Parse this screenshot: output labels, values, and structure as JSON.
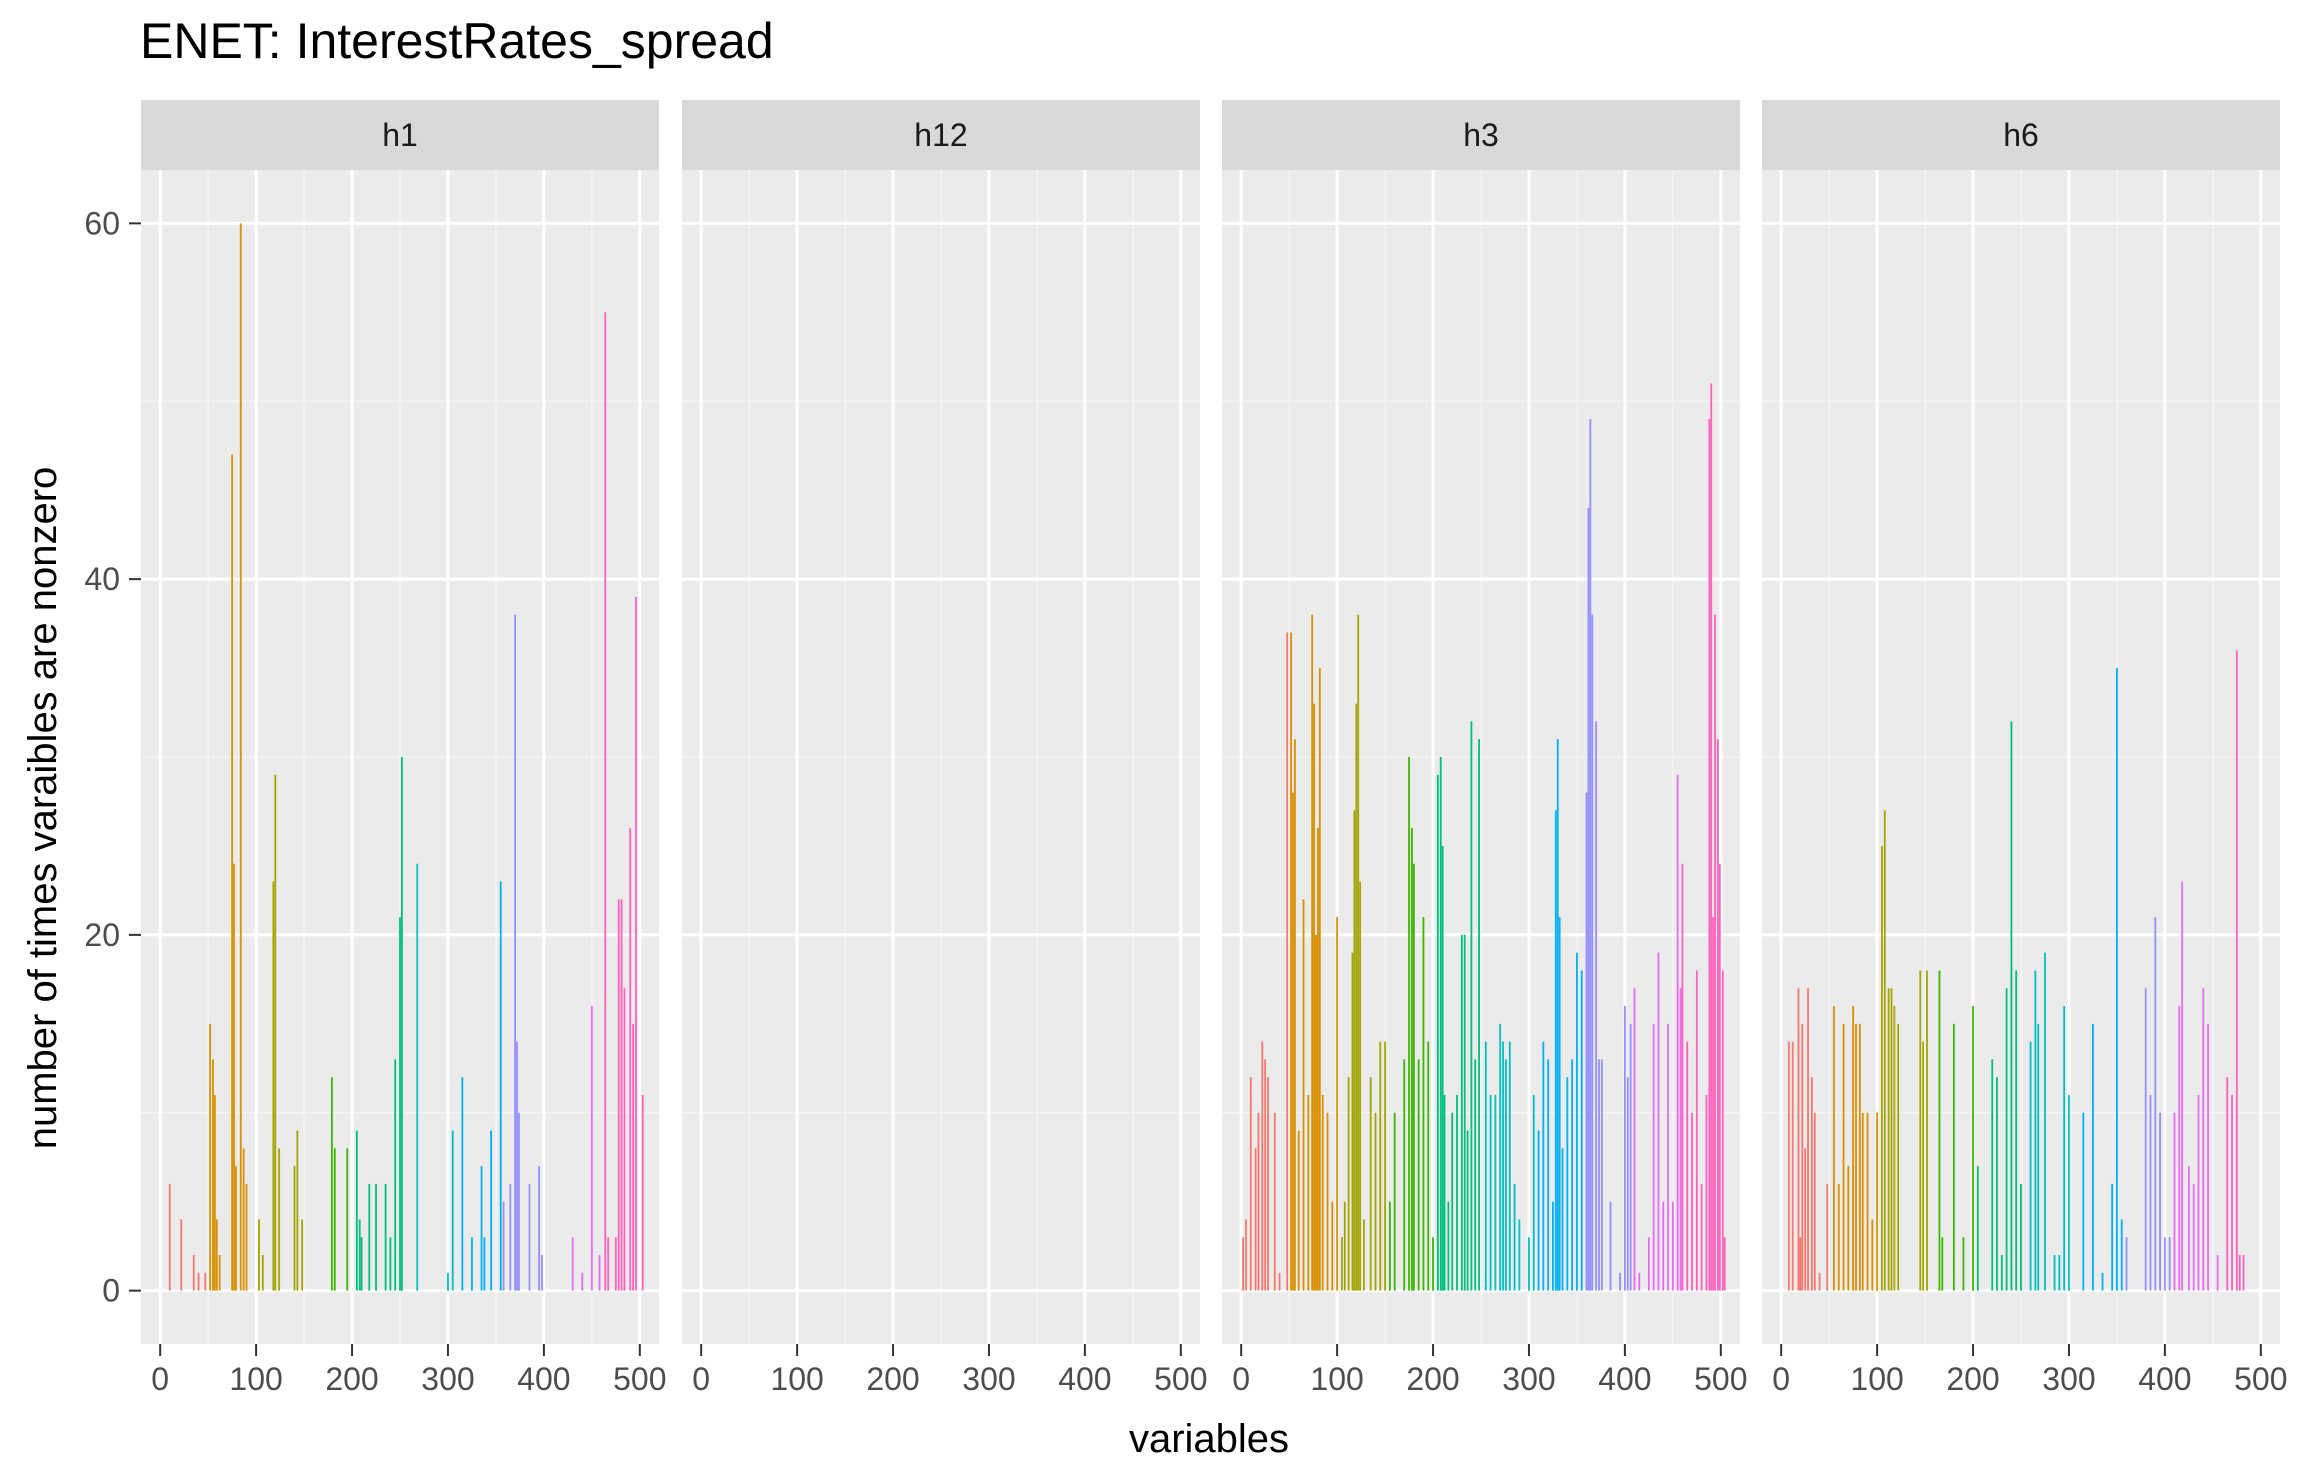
{
  "chart_data": {
    "type": "bar",
    "title": "ENET: InterestRates_spread",
    "xlabel": "variables",
    "ylabel": "number of times varaibles are nonzero",
    "xlim": [
      -20,
      520
    ],
    "ylim": [
      -3,
      63
    ],
    "x_ticks": [
      0,
      100,
      200,
      300,
      400,
      500
    ],
    "y_ticks": [
      0,
      20,
      40,
      60
    ],
    "facets": [
      {
        "name": "h1",
        "bars": [
          [
            10,
            6
          ],
          [
            22,
            4
          ],
          [
            35,
            2
          ],
          [
            40,
            1
          ],
          [
            47,
            1
          ],
          [
            52,
            15
          ],
          [
            55,
            13
          ],
          [
            57,
            11
          ],
          [
            59,
            4
          ],
          [
            62,
            2
          ],
          [
            75,
            47
          ],
          [
            77,
            24
          ],
          [
            79,
            7
          ],
          [
            84,
            60
          ],
          [
            87,
            8
          ],
          [
            90,
            6
          ],
          [
            103,
            4
          ],
          [
            107,
            2
          ],
          [
            118,
            23
          ],
          [
            120,
            29
          ],
          [
            124,
            8
          ],
          [
            140,
            7
          ],
          [
            143,
            9
          ],
          [
            148,
            4
          ],
          [
            179,
            12
          ],
          [
            182,
            8
          ],
          [
            195,
            8
          ],
          [
            205,
            9
          ],
          [
            208,
            4
          ],
          [
            210,
            3
          ],
          [
            218,
            6
          ],
          [
            225,
            6
          ],
          [
            235,
            6
          ],
          [
            240,
            3
          ],
          [
            245,
            13
          ],
          [
            250,
            21
          ],
          [
            252,
            30
          ],
          [
            268,
            24
          ],
          [
            300,
            1
          ],
          [
            305,
            9
          ],
          [
            315,
            12
          ],
          [
            325,
            3
          ],
          [
            335,
            7
          ],
          [
            338,
            3
          ],
          [
            345,
            9
          ],
          [
            355,
            23
          ],
          [
            358,
            5
          ],
          [
            365,
            6
          ],
          [
            370,
            38
          ],
          [
            372,
            14
          ],
          [
            374,
            10
          ],
          [
            385,
            6
          ],
          [
            395,
            7
          ],
          [
            398,
            2
          ],
          [
            430,
            3
          ],
          [
            440,
            1
          ],
          [
            450,
            16
          ],
          [
            458,
            2
          ],
          [
            464,
            55
          ],
          [
            467,
            3
          ],
          [
            475,
            3
          ],
          [
            478,
            22
          ],
          [
            481,
            22
          ],
          [
            484,
            17
          ],
          [
            490,
            26
          ],
          [
            493,
            15
          ],
          [
            496,
            39
          ],
          [
            503,
            11
          ]
        ]
      },
      {
        "name": "h12",
        "bars": []
      },
      {
        "name": "h3",
        "bars": [
          [
            2,
            3
          ],
          [
            5,
            4
          ],
          [
            10,
            12
          ],
          [
            15,
            8
          ],
          [
            18,
            10
          ],
          [
            22,
            14
          ],
          [
            25,
            13
          ],
          [
            28,
            12
          ],
          [
            35,
            10
          ],
          [
            40,
            1
          ],
          [
            48,
            37
          ],
          [
            52,
            37
          ],
          [
            54,
            28
          ],
          [
            56,
            31
          ],
          [
            60,
            9
          ],
          [
            65,
            22
          ],
          [
            70,
            11
          ],
          [
            74,
            38
          ],
          [
            76,
            33
          ],
          [
            78,
            20
          ],
          [
            80,
            26
          ],
          [
            82,
            35
          ],
          [
            85,
            11
          ],
          [
            90,
            10
          ],
          [
            95,
            5
          ],
          [
            100,
            21
          ],
          [
            105,
            3
          ],
          [
            108,
            5
          ],
          [
            112,
            12
          ],
          [
            116,
            19
          ],
          [
            118,
            27
          ],
          [
            120,
            33
          ],
          [
            122,
            38
          ],
          [
            124,
            23
          ],
          [
            128,
            4
          ],
          [
            135,
            12
          ],
          [
            140,
            10
          ],
          [
            145,
            14
          ],
          [
            150,
            14
          ],
          [
            155,
            5
          ],
          [
            160,
            10
          ],
          [
            170,
            13
          ],
          [
            175,
            30
          ],
          [
            178,
            26
          ],
          [
            180,
            24
          ],
          [
            185,
            13
          ],
          [
            190,
            21
          ],
          [
            195,
            14
          ],
          [
            200,
            3
          ],
          [
            205,
            29
          ],
          [
            208,
            30
          ],
          [
            210,
            25
          ],
          [
            212,
            11
          ],
          [
            216,
            5
          ],
          [
            220,
            10
          ],
          [
            225,
            11
          ],
          [
            230,
            20
          ],
          [
            233,
            20
          ],
          [
            236,
            9
          ],
          [
            240,
            32
          ],
          [
            244,
            13
          ],
          [
            248,
            31
          ],
          [
            255,
            14
          ],
          [
            260,
            11
          ],
          [
            265,
            11
          ],
          [
            270,
            15
          ],
          [
            273,
            14
          ],
          [
            276,
            13
          ],
          [
            280,
            14
          ],
          [
            285,
            6
          ],
          [
            290,
            4
          ],
          [
            300,
            3
          ],
          [
            305,
            11
          ],
          [
            310,
            9
          ],
          [
            315,
            14
          ],
          [
            320,
            13
          ],
          [
            325,
            5
          ],
          [
            328,
            27
          ],
          [
            330,
            31
          ],
          [
            332,
            21
          ],
          [
            335,
            8
          ],
          [
            340,
            12
          ],
          [
            345,
            13
          ],
          [
            350,
            19
          ],
          [
            355,
            18
          ],
          [
            360,
            28
          ],
          [
            362,
            44
          ],
          [
            364,
            49
          ],
          [
            366,
            38
          ],
          [
            370,
            32
          ],
          [
            373,
            13
          ],
          [
            376,
            13
          ],
          [
            385,
            5
          ],
          [
            395,
            1
          ],
          [
            400,
            16
          ],
          [
            403,
            12
          ],
          [
            406,
            15
          ],
          [
            410,
            17
          ],
          [
            415,
            1
          ],
          [
            425,
            3
          ],
          [
            430,
            15
          ],
          [
            435,
            19
          ],
          [
            440,
            5
          ],
          [
            445,
            15
          ],
          [
            450,
            5
          ],
          [
            455,
            29
          ],
          [
            458,
            17
          ],
          [
            460,
            24
          ],
          [
            465,
            14
          ],
          [
            470,
            10
          ],
          [
            475,
            18
          ],
          [
            480,
            6
          ],
          [
            485,
            11
          ],
          [
            488,
            49
          ],
          [
            490,
            51
          ],
          [
            492,
            21
          ],
          [
            494,
            38
          ],
          [
            497,
            31
          ],
          [
            499,
            24
          ],
          [
            502,
            18
          ],
          [
            504,
            3
          ]
        ]
      },
      {
        "name": "h6",
        "bars": [
          [
            8,
            14
          ],
          [
            12,
            14
          ],
          [
            18,
            17
          ],
          [
            20,
            3
          ],
          [
            22,
            15
          ],
          [
            25,
            8
          ],
          [
            28,
            17
          ],
          [
            32,
            12
          ],
          [
            35,
            10
          ],
          [
            40,
            1
          ],
          [
            48,
            6
          ],
          [
            55,
            16
          ],
          [
            60,
            6
          ],
          [
            65,
            15
          ],
          [
            70,
            7
          ],
          [
            75,
            16
          ],
          [
            78,
            15
          ],
          [
            82,
            15
          ],
          [
            85,
            10
          ],
          [
            90,
            10
          ],
          [
            95,
            4
          ],
          [
            100,
            10
          ],
          [
            105,
            25
          ],
          [
            108,
            27
          ],
          [
            112,
            17
          ],
          [
            115,
            17
          ],
          [
            118,
            16
          ],
          [
            122,
            15
          ],
          [
            145,
            18
          ],
          [
            148,
            14
          ],
          [
            152,
            18
          ],
          [
            165,
            18
          ],
          [
            168,
            3
          ],
          [
            180,
            15
          ],
          [
            190,
            3
          ],
          [
            200,
            16
          ],
          [
            205,
            7
          ],
          [
            220,
            13
          ],
          [
            225,
            12
          ],
          [
            230,
            2
          ],
          [
            235,
            17
          ],
          [
            240,
            32
          ],
          [
            245,
            18
          ],
          [
            250,
            6
          ],
          [
            260,
            14
          ],
          [
            265,
            18
          ],
          [
            268,
            15
          ],
          [
            275,
            19
          ],
          [
            285,
            2
          ],
          [
            290,
            2
          ],
          [
            295,
            16
          ],
          [
            300,
            11
          ],
          [
            315,
            10
          ],
          [
            325,
            15
          ],
          [
            335,
            1
          ],
          [
            345,
            6
          ],
          [
            350,
            35
          ],
          [
            355,
            4
          ],
          [
            360,
            3
          ],
          [
            380,
            17
          ],
          [
            385,
            11
          ],
          [
            390,
            21
          ],
          [
            395,
            10
          ],
          [
            400,
            3
          ],
          [
            405,
            3
          ],
          [
            410,
            10
          ],
          [
            415,
            16
          ],
          [
            418,
            23
          ],
          [
            425,
            7
          ],
          [
            430,
            6
          ],
          [
            435,
            11
          ],
          [
            440,
            17
          ],
          [
            445,
            15
          ],
          [
            455,
            2
          ],
          [
            465,
            12
          ],
          [
            470,
            11
          ],
          [
            475,
            36
          ],
          [
            478,
            2
          ],
          [
            482,
            2
          ]
        ]
      }
    ]
  }
}
